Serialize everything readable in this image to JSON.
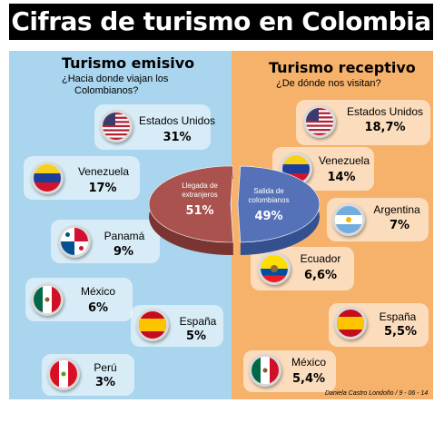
{
  "title": "Cifras de turismo en Colombia",
  "left": {
    "heading": "Turismo emisivo",
    "subtitle_line1": "¿Hacia donde viajan los",
    "subtitle_line2": "Colombianos?",
    "items": [
      {
        "country": "Estados Unidos",
        "pct": "31%",
        "flag": "usa-flag-icon"
      },
      {
        "country": "Venezuela",
        "pct": "17%",
        "flag": "venezuela-flag-icon"
      },
      {
        "country": "Panamá",
        "pct": "9%",
        "flag": "panama-flag-icon"
      },
      {
        "country": "México",
        "pct": "6%",
        "flag": "mexico-flag-icon"
      },
      {
        "country": "España",
        "pct": "5%",
        "flag": "spain-flag-icon"
      },
      {
        "country": "Perú",
        "pct": "3%",
        "flag": "peru-flag-icon"
      }
    ]
  },
  "right": {
    "heading": "Turismo receptivo",
    "subtitle": "¿De dónde nos visitan?",
    "items": [
      {
        "country": "Estados Unidos",
        "pct": "18,7%",
        "flag": "usa-flag-icon"
      },
      {
        "country": "Venezuela",
        "pct": "14%",
        "flag": "venezuela-flag-icon"
      },
      {
        "country": "Argentina",
        "pct": "7%",
        "flag": "argentina-flag-icon"
      },
      {
        "country": "Ecuador",
        "pct": "6,6%",
        "flag": "ecuador-flag-icon"
      },
      {
        "country": "España",
        "pct": "5,5%",
        "flag": "spain-flag-icon"
      },
      {
        "country": "México",
        "pct": "5,4%",
        "flag": "mexico-flag-icon"
      }
    ]
  },
  "pie": {
    "left_label_line1": "Llegada de",
    "left_label_line2": "extranjeros",
    "left_pct": "51%",
    "right_label_line1": "Salida de",
    "right_label_line2": "colombianos",
    "right_pct": "49%"
  },
  "credit": "Daniela Castro Londoño / 9 - 06 - 14",
  "colors": {
    "left_bg": "#a9d5ee",
    "right_bg": "#f6b26b",
    "pie_red": "#a9524e",
    "pie_blue": "#5572b8"
  },
  "chart_data": [
    {
      "type": "pie",
      "categories": [
        "Llegada de extranjeros",
        "Salida de colombianos"
      ],
      "values": [
        51,
        49
      ]
    },
    {
      "type": "table",
      "title": "Turismo emisivo",
      "categories": [
        "Estados Unidos",
        "Venezuela",
        "Panamá",
        "México",
        "España",
        "Perú"
      ],
      "values": [
        31,
        17,
        9,
        6,
        5,
        3
      ]
    },
    {
      "type": "table",
      "title": "Turismo receptivo",
      "categories": [
        "Estados Unidos",
        "Venezuela",
        "Argentina",
        "Ecuador",
        "España",
        "México"
      ],
      "values": [
        18.7,
        14,
        7,
        6.6,
        5.5,
        5.4
      ]
    }
  ]
}
